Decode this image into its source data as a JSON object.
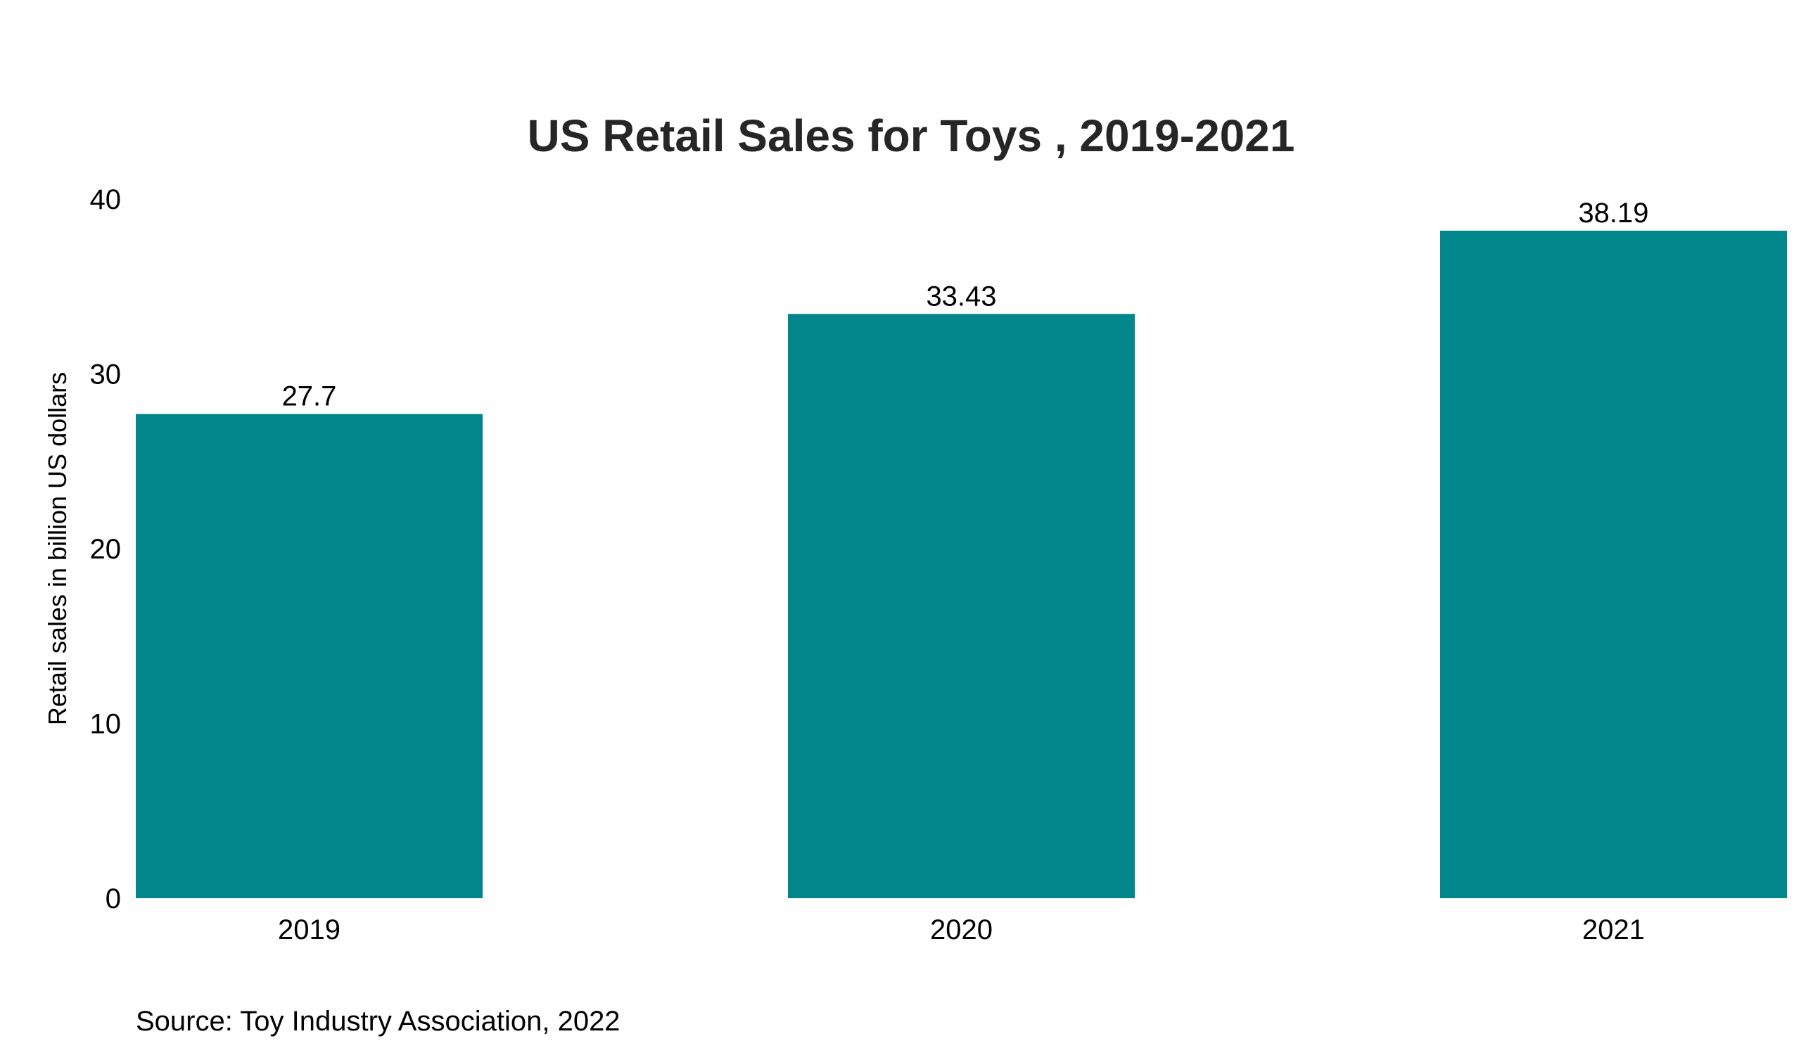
{
  "chart_data": {
    "type": "bar",
    "title": "US Retail Sales for Toys , 2019-2021",
    "xlabel": "",
    "ylabel": "Retail sales in billion US dollars",
    "categories": [
      "2019",
      "2020",
      "2021"
    ],
    "values": [
      27.7,
      33.43,
      38.19
    ],
    "value_labels": [
      "27.7",
      "33.43",
      "38.19"
    ],
    "ylim": [
      0,
      40
    ],
    "yticks": [
      0,
      10,
      20,
      30,
      40
    ],
    "grid": false,
    "legend": "none",
    "bar_color": "#00868B"
  },
  "source": "Source: Toy Industry Association, 2022"
}
